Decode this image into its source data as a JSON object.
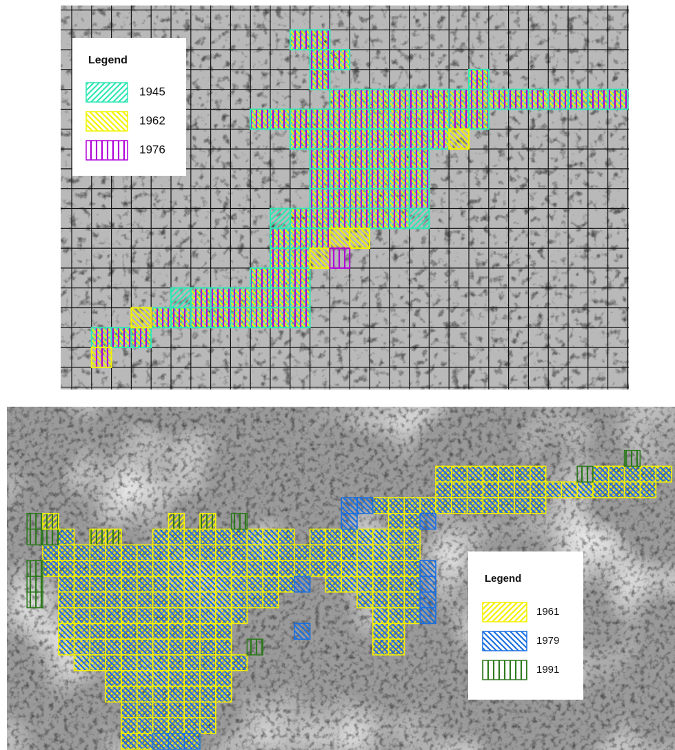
{
  "panels": [
    {
      "legend": {
        "title": "Legend",
        "items": [
          {
            "label": "1945",
            "color": "#2ee6b4"
          },
          {
            "label": "1962",
            "color": "#f2f200"
          },
          {
            "label": "1976",
            "color": "#b000d8"
          }
        ]
      }
    },
    {
      "legend": {
        "title": "Legend",
        "items": [
          {
            "label": "1961",
            "color": "#f4f000"
          },
          {
            "label": "1979",
            "color": "#1a6fe0"
          },
          {
            "label": "1991",
            "color": "#2e7a1e"
          }
        ]
      }
    }
  ]
}
